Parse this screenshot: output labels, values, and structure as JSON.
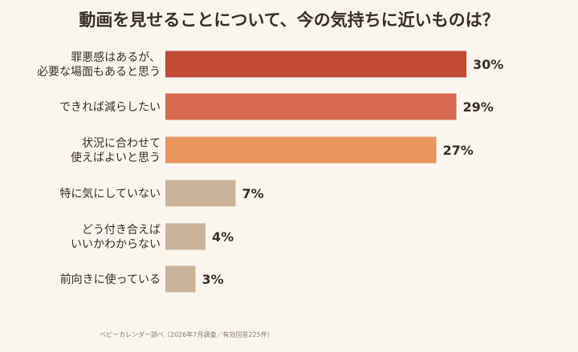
{
  "chart_data": {
    "type": "bar",
    "orientation": "horizontal",
    "title": "動画を見せることについて、今の気持ちに近いものは？",
    "categories": [
      [
        "罪悪感はあるが、",
        "必要な場面もあると思う"
      ],
      [
        "できれば減らしたい"
      ],
      [
        "状況に合わせて",
        "使えばよいと思う"
      ],
      [
        "特に気にしていない"
      ],
      [
        "どう付き合えば",
        "いいかわからない"
      ],
      [
        "前向きに使っている"
      ]
    ],
    "values": [
      30,
      29,
      27,
      7,
      4,
      3
    ],
    "value_labels": [
      "30%",
      "29%",
      "27%",
      "7%",
      "4%",
      "3%"
    ],
    "unit": "%",
    "xlim": [
      0,
      30
    ],
    "grid": false,
    "colors": [
      "#c24a35",
      "#d8694e",
      "#e8965e",
      "#cbb39a",
      "#cbb39a",
      "#cbb39a"
    ],
    "source_note": "ベビーカレンダー調べ（2026年7月調査／有効回答225件）"
  }
}
